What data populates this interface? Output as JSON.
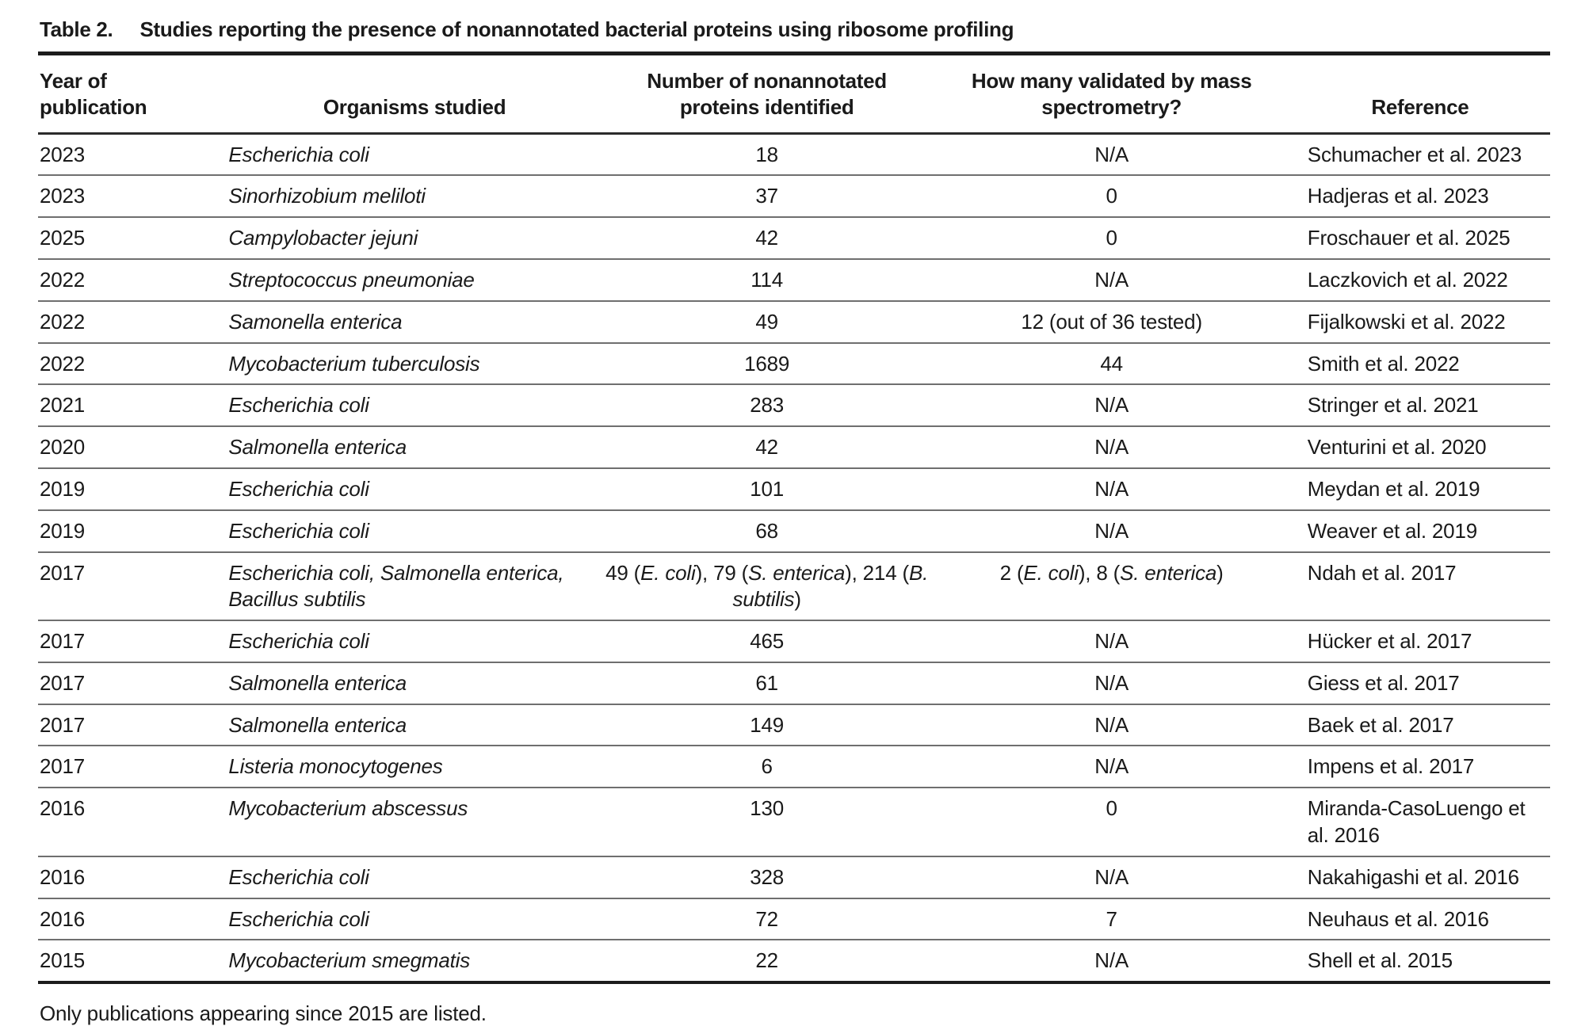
{
  "table": {
    "label": "Table 2.",
    "title": "Studies reporting the presence of nonannotated bacterial proteins using ribosome profiling",
    "columns": [
      {
        "label": "Year of\npublication"
      },
      {
        "label": "Organisms studied"
      },
      {
        "label": "Number of nonannotated\nproteins identified"
      },
      {
        "label": "How many validated by mass\nspectrometry?"
      },
      {
        "label": "Reference"
      }
    ],
    "rows": [
      {
        "year": "2023",
        "organism": "Escherichia coli",
        "number": "18",
        "validated": "N/A",
        "reference": "Schumacher et al. 2023"
      },
      {
        "year": "2023",
        "organism": "Sinorhizobium meliloti",
        "number": "37",
        "validated": "0",
        "reference": "Hadjeras et al. 2023"
      },
      {
        "year": "2025",
        "organism": "Campylobacter jejuni",
        "number": "42",
        "validated": "0",
        "reference": "Froschauer et al. 2025"
      },
      {
        "year": "2022",
        "organism": "Streptococcus pneumoniae",
        "number": "114",
        "validated": "N/A",
        "reference": "Laczkovich et al. 2022"
      },
      {
        "year": "2022",
        "organism": "Samonella enterica",
        "number": "49",
        "validated": "12 (out of 36 tested)",
        "reference": "Fijalkowski et al. 2022"
      },
      {
        "year": "2022",
        "organism": "Mycobacterium tuberculosis",
        "number": "1689",
        "validated": "44",
        "reference": "Smith et al. 2022"
      },
      {
        "year": "2021",
        "organism": "Escherichia coli",
        "number": "283",
        "validated": "N/A",
        "reference": "Stringer et al. 2021"
      },
      {
        "year": "2020",
        "organism": "Salmonella enterica",
        "number": "42",
        "validated": "N/A",
        "reference": "Venturini et al. 2020"
      },
      {
        "year": "2019",
        "organism": "Escherichia coli",
        "number": "101",
        "validated": "N/A",
        "reference": "Meydan et al. 2019"
      },
      {
        "year": "2019",
        "organism": "Escherichia coli",
        "number": "68",
        "validated": "N/A",
        "reference": "Weaver et al. 2019"
      },
      {
        "year": "2017",
        "organism": "Escherichia coli, Salmonella enterica, Bacillus subtilis",
        "number": [
          {
            "t": "49 ("
          },
          {
            "t": "E. coli",
            "i": true
          },
          {
            "t": "), 79 ("
          },
          {
            "t": "S. enterica",
            "i": true
          },
          {
            "t": "), 214 ("
          },
          {
            "t": "B. subtilis",
            "i": true
          },
          {
            "t": ")"
          }
        ],
        "validated": [
          {
            "t": "2 ("
          },
          {
            "t": "E. coli",
            "i": true
          },
          {
            "t": "), 8 ("
          },
          {
            "t": "S. enterica",
            "i": true
          },
          {
            "t": ")"
          }
        ],
        "reference": "Ndah et al. 2017"
      },
      {
        "year": "2017",
        "organism": "Escherichia coli",
        "number": "465",
        "validated": "N/A",
        "reference": "Hücker et al. 2017"
      },
      {
        "year": "2017",
        "organism": "Salmonella enterica",
        "number": "61",
        "validated": "N/A",
        "reference": "Giess et al. 2017"
      },
      {
        "year": "2017",
        "organism": "Salmonella enterica",
        "number": "149",
        "validated": "N/A",
        "reference": "Baek et al. 2017"
      },
      {
        "year": "2017",
        "organism": "Listeria monocytogenes",
        "number": "6",
        "validated": "N/A",
        "reference": "Impens et al. 2017"
      },
      {
        "year": "2016",
        "organism": "Mycobacterium abscessus",
        "number": "130",
        "validated": "0",
        "reference": "Miranda-CasoLuengo et al. 2016"
      },
      {
        "year": "2016",
        "organism": "Escherichia coli",
        "number": "328",
        "validated": "N/A",
        "reference": "Nakahigashi et al. 2016"
      },
      {
        "year": "2016",
        "organism": "Escherichia coli",
        "number": "72",
        "validated": "7",
        "reference": "Neuhaus et al. 2016"
      },
      {
        "year": "2015",
        "organism": "Mycobacterium smegmatis",
        "number": "22",
        "validated": "N/A",
        "reference": "Shell et al. 2015"
      }
    ],
    "footnote": "Only publications appearing since 2015 are listed."
  }
}
